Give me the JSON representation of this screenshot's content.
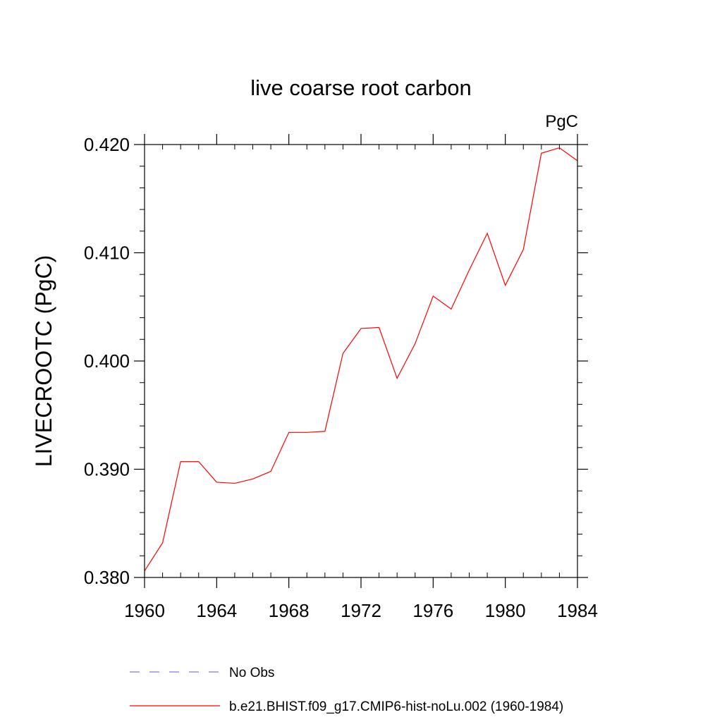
{
  "chart_data": {
    "type": "line",
    "title": "live coarse root carbon",
    "units": "PgC",
    "ylabel": "LIVECROOTC  (PgC)",
    "xlabel": "",
    "xlim": [
      1960,
      1984
    ],
    "ylim": [
      0.38,
      0.42
    ],
    "x_ticks": [
      "1960",
      "1964",
      "1968",
      "1972",
      "1976",
      "1980",
      "1984"
    ],
    "y_ticks": [
      "0.380",
      "0.390",
      "0.400",
      "0.410",
      "0.420"
    ],
    "grid": false,
    "legend_position": "bottom",
    "series": [
      {
        "name": "No Obs",
        "color": "#7b7bd6",
        "dash": "dashed",
        "x": [],
        "values": []
      },
      {
        "name": "b.e21.BHIST.f09_g17.CMIP6-hist-noLu.002 (1960-1984)",
        "color": "#ff0000",
        "dash": "solid",
        "x": [
          1960,
          1961,
          1962,
          1963,
          1964,
          1965,
          1966,
          1967,
          1968,
          1969,
          1970,
          1971,
          1972,
          1973,
          1974,
          1975,
          1976,
          1977,
          1978,
          1979,
          1980,
          1981,
          1982,
          1983,
          1984
        ],
        "values": [
          0.3806,
          0.3832,
          0.3907,
          0.3907,
          0.3888,
          0.3887,
          0.3891,
          0.3898,
          0.3934,
          0.3934,
          0.3935,
          0.4007,
          0.403,
          0.4031,
          0.3984,
          0.4016,
          0.406,
          0.4048,
          0.4084,
          0.4118,
          0.407,
          0.4103,
          0.4192,
          0.4197,
          0.4185
        ]
      }
    ]
  }
}
